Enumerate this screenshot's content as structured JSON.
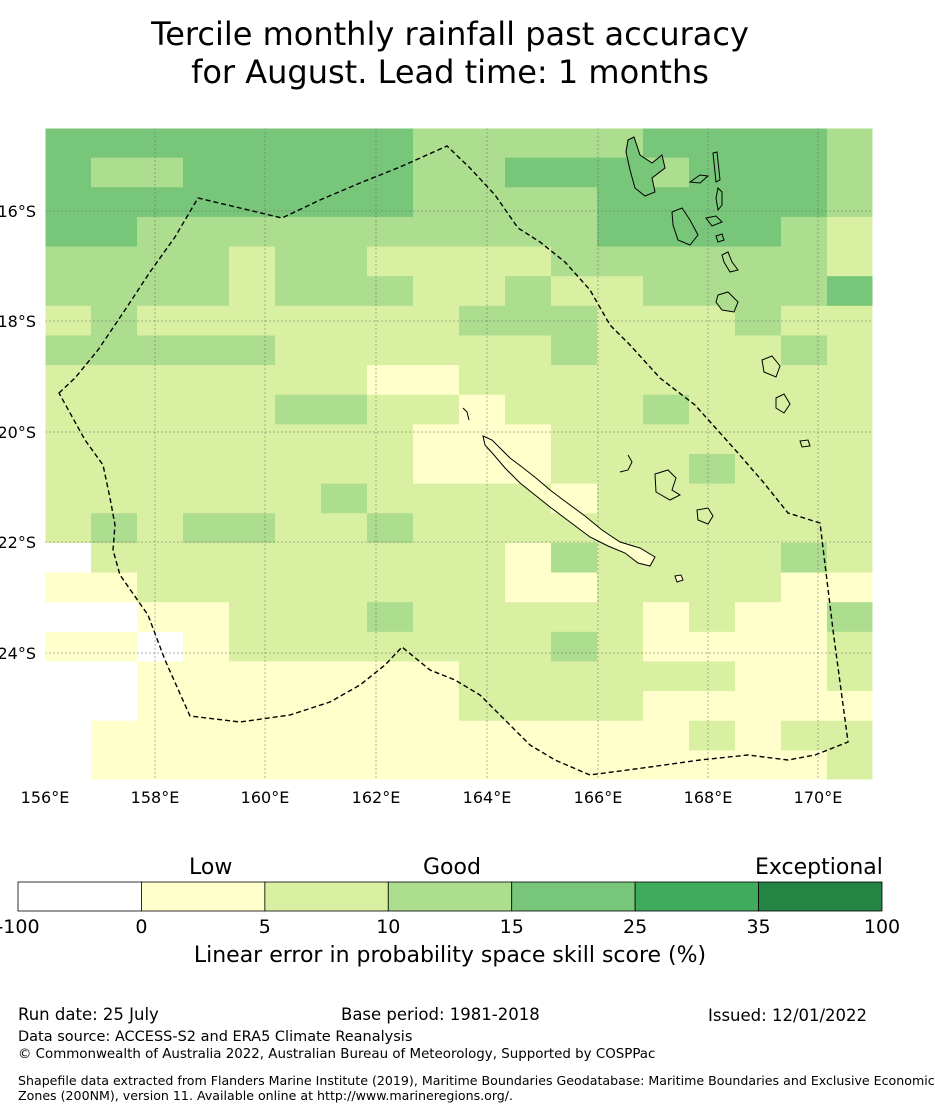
{
  "title_line1": "Tercile monthly rainfall past accuracy",
  "title_line2": "for August. Lead time: 1 months",
  "map": {
    "lon_ticks": [
      "156°E",
      "158°E",
      "160°E",
      "162°E",
      "164°E",
      "166°E",
      "168°E",
      "170°E"
    ],
    "lat_ticks": [
      "16°S",
      "18°S",
      "20°S",
      "22°S",
      "24°S"
    ],
    "grid": "on",
    "boundary": "dashed"
  },
  "legend": {
    "category_labels": [
      "Low",
      "Good",
      "Exceptional"
    ],
    "tick_labels": [
      "-100",
      "0",
      "5",
      "10",
      "15",
      "25",
      "35",
      "100"
    ],
    "colors": [
      "#ffffff",
      "#ffffcc",
      "#d9f0a3",
      "#addd8e",
      "#78c679",
      "#41ab5d",
      "#238443"
    ],
    "label": "Linear error in probability space skill score (%)"
  },
  "footer": {
    "run_date": "Run date: 25 July",
    "base_period": "Base period: 1981-2018",
    "issued": "Issued: 12/01/2022",
    "data_source": "Data source: ACCESS-S2 and ERA5 Climate Reanalysis",
    "copyright": "© Commonwealth of Australia 2022, Australian Bureau of Meteorology, Supported by COSPPac",
    "shapefile_line1": "Shapefile data extracted from Flanders Marine Institute (2019), Maritime Boundaries Geodatabase: Maritime Boundaries and Exclusive Economic",
    "shapefile_line2": "Zones (200NM), version 11. Available online at http://www.marineregions.org/."
  }
}
